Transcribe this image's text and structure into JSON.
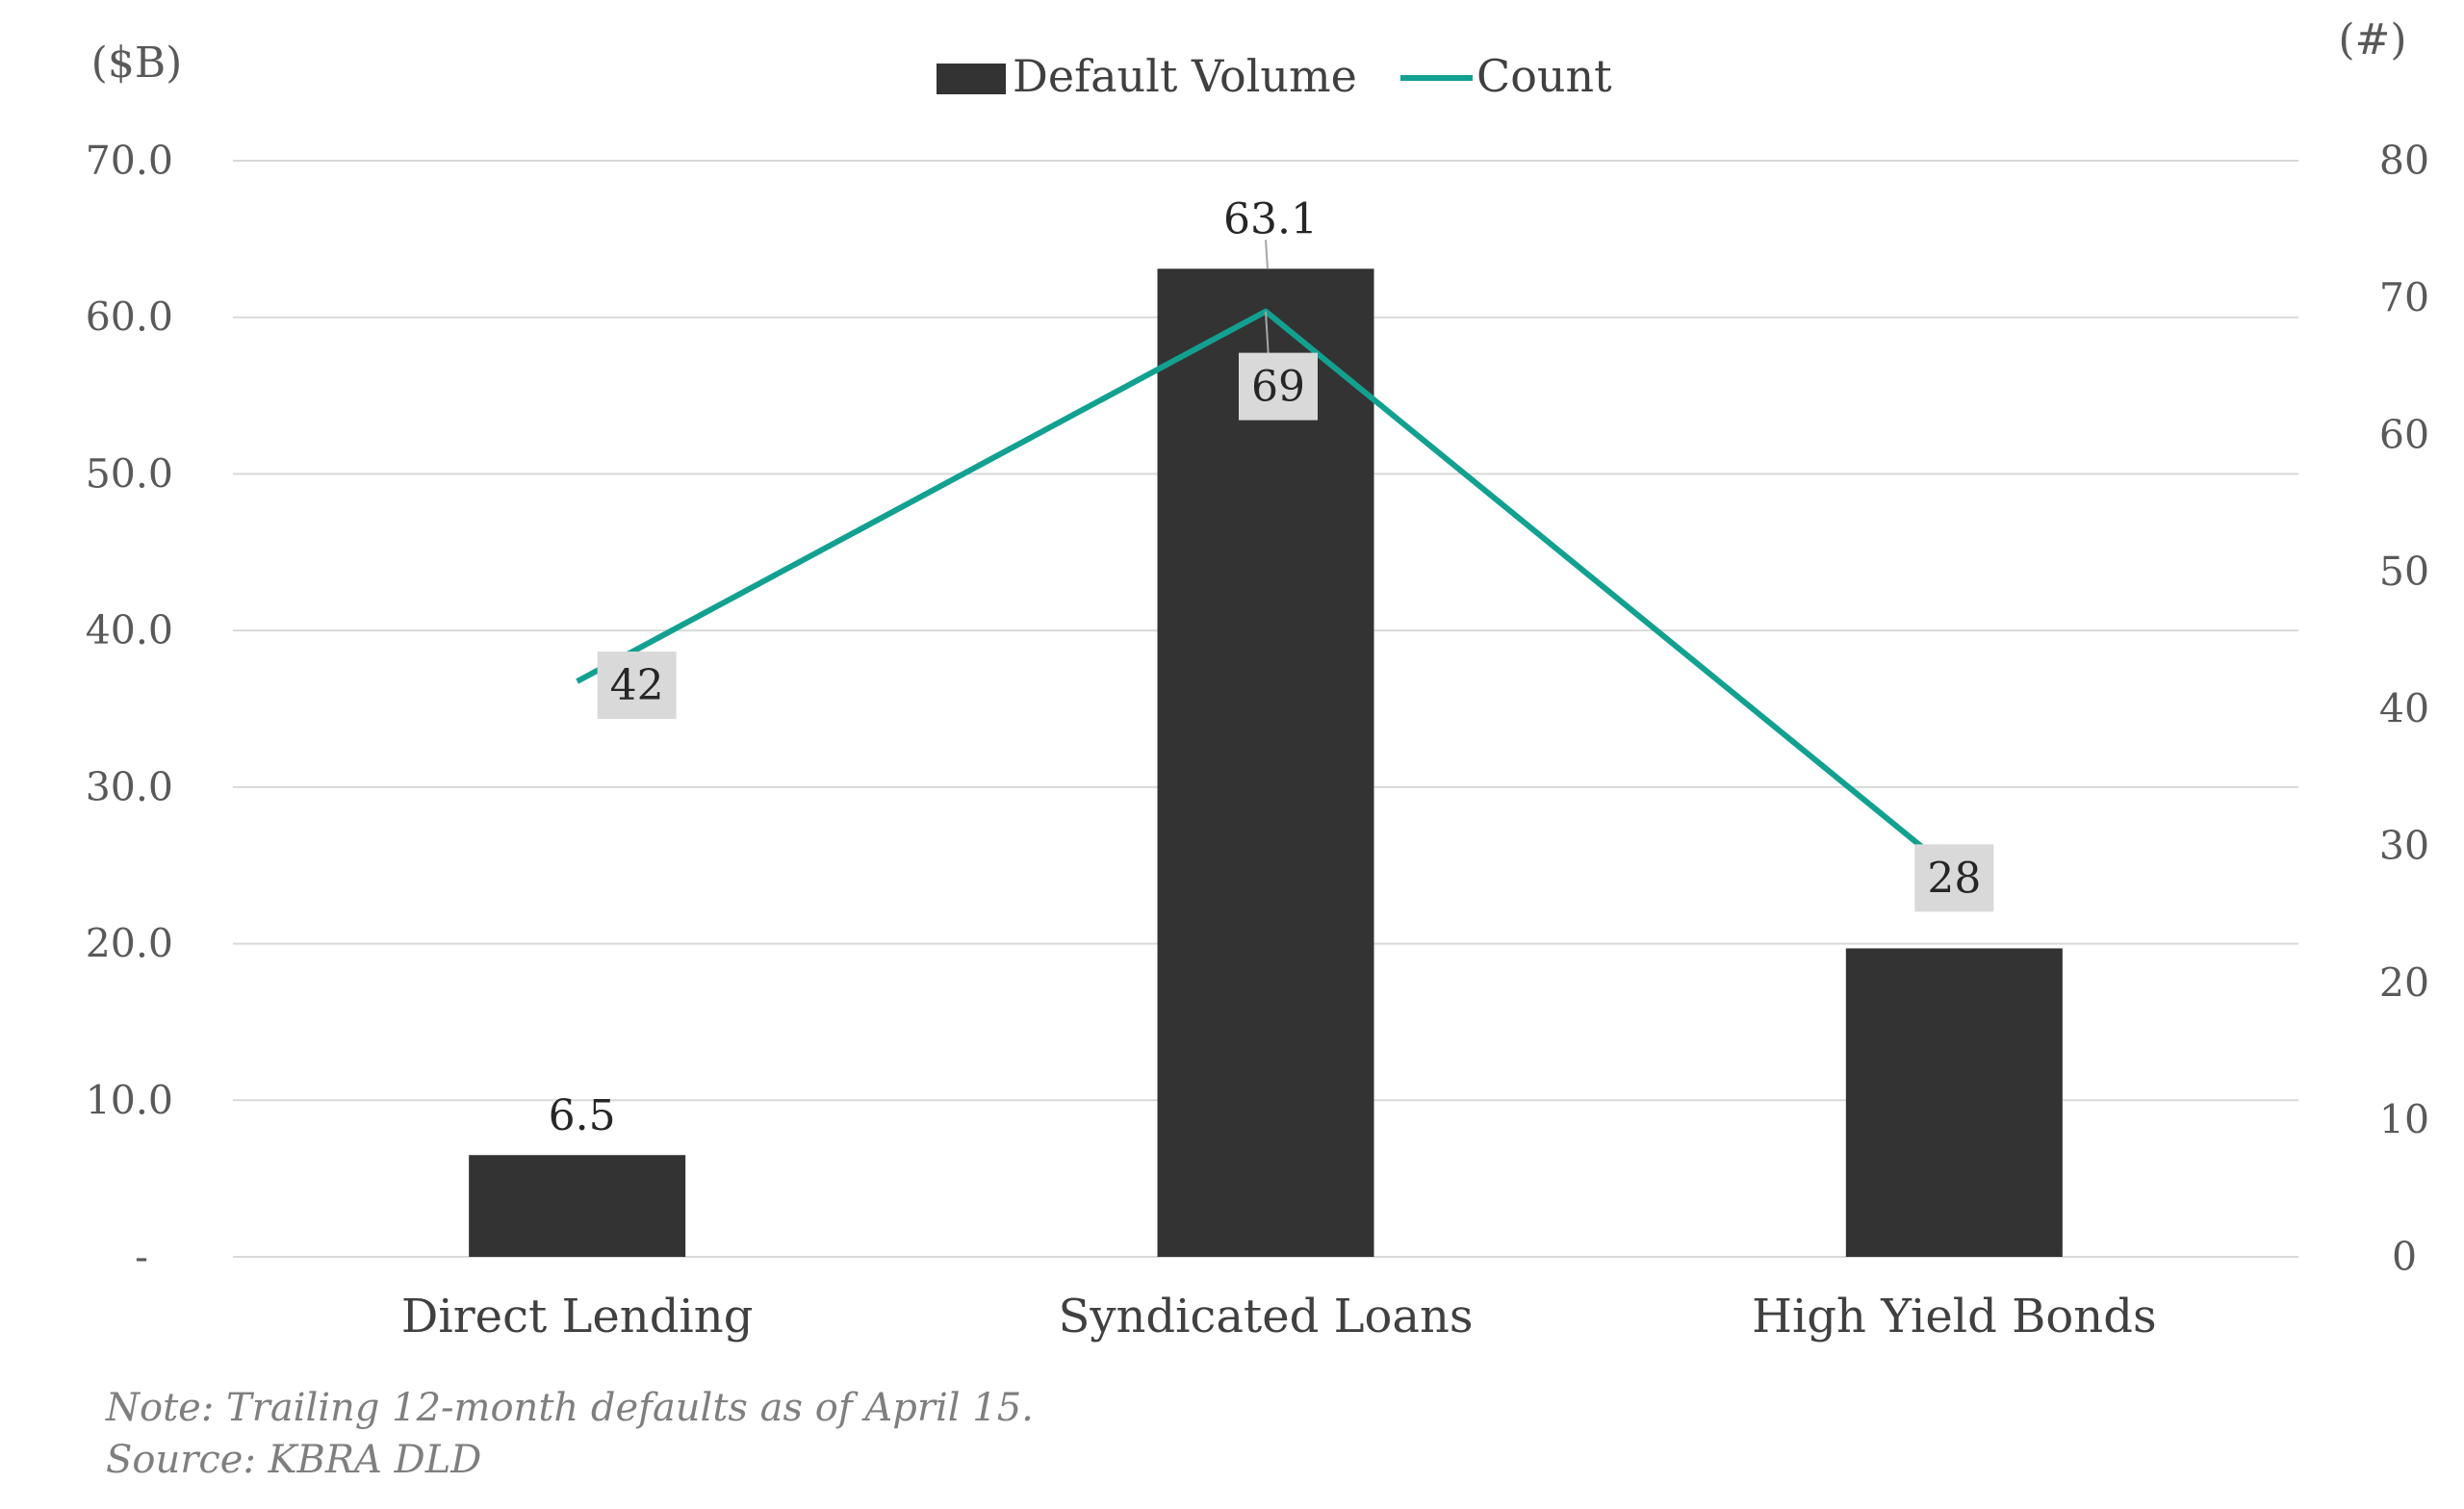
{
  "chart_data": {
    "type": "bar",
    "categories": [
      "Direct Lending",
      "Syndicated Loans",
      "High Yield Bonds"
    ],
    "series": [
      {
        "name": "Default Volume",
        "kind": "bar",
        "axis": "left",
        "color": "#333333",
        "values": [
          6.5,
          63.1,
          19.7
        ],
        "labels": [
          "6.5",
          "63.1",
          ""
        ]
      },
      {
        "name": "Count",
        "kind": "line",
        "axis": "right",
        "color": "#12A190",
        "values": [
          42,
          69,
          28
        ],
        "labels": [
          "42",
          "69",
          "28"
        ]
      }
    ],
    "y_left": {
      "unit": "($B)",
      "ylim": [
        0,
        70
      ],
      "ticks": [
        0,
        10,
        20,
        30,
        40,
        50,
        60,
        70
      ],
      "tick_labels": [
        "-",
        "10.0",
        "20.0",
        "30.0",
        "40.0",
        "50.0",
        "60.0",
        "70.0"
      ]
    },
    "y_right": {
      "unit": "(#)",
      "ylim": [
        0,
        80
      ],
      "ticks": [
        0,
        10,
        20,
        30,
        40,
        50,
        60,
        70,
        80
      ],
      "tick_labels": [
        "0",
        "10",
        "20",
        "30",
        "40",
        "50",
        "60",
        "70",
        "80"
      ]
    },
    "legend": {
      "position": "top-center",
      "entries": [
        "Default Volume",
        "Count"
      ]
    },
    "grid": true,
    "colors": {
      "bar": "#333333",
      "line": "#12A190",
      "grid": "#d9d9d9",
      "label_box": "#d9d9d9"
    }
  },
  "footnotes": {
    "note": "Note: Trailing 12-month defaults as of April 15.",
    "source": "Source: KBRA DLD"
  }
}
